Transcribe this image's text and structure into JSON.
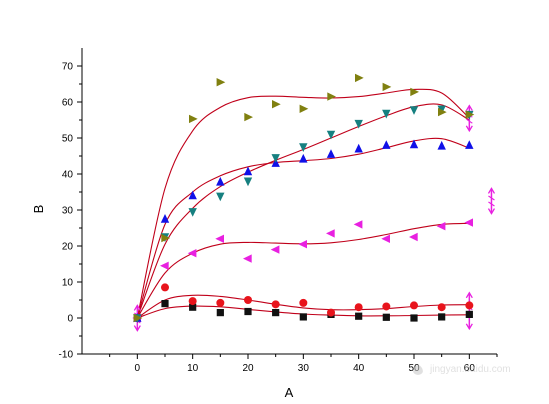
{
  "chart_data": {
    "type": "scatter",
    "xlabel": "A",
    "ylabel": "B",
    "xlim": [
      -10,
      65
    ],
    "ylim": [
      -10,
      75
    ],
    "x_ticks": [
      0,
      10,
      20,
      30,
      40,
      50,
      60
    ],
    "y_ticks": [
      -10,
      0,
      10,
      20,
      30,
      40,
      50,
      60,
      70
    ],
    "grid": false,
    "fit_color": "#c0001a",
    "series": [
      {
        "marker": "square",
        "color": "#111111",
        "x": [
          0,
          5,
          10,
          15,
          20,
          25,
          30,
          35,
          40,
          45,
          50,
          55,
          60
        ],
        "y": [
          0,
          4,
          3,
          1.5,
          1.8,
          1.5,
          0.3,
          1,
          0.5,
          0.2,
          0,
          0.3,
          1
        ],
        "fit": [
          [
            0,
            0
          ],
          [
            5,
            2.6
          ],
          [
            10,
            3.3
          ],
          [
            15,
            3.1
          ],
          [
            20,
            2.4
          ],
          [
            25,
            1.7
          ],
          [
            30,
            1.1
          ],
          [
            35,
            0.8
          ],
          [
            40,
            0.6
          ],
          [
            45,
            0.6
          ],
          [
            50,
            0.7
          ],
          [
            55,
            0.8
          ],
          [
            60,
            0.9
          ]
        ]
      },
      {
        "marker": "circle",
        "color": "#e8141c",
        "x": [
          0,
          5,
          10,
          15,
          20,
          25,
          30,
          35,
          40,
          45,
          50,
          55,
          60
        ],
        "y": [
          0,
          8.5,
          4.7,
          4.2,
          5,
          3.8,
          4.2,
          1.5,
          3,
          3.2,
          3.5,
          3,
          3.5
        ],
        "fit": [
          [
            0,
            0
          ],
          [
            5,
            5
          ],
          [
            10,
            6.3
          ],
          [
            15,
            6
          ],
          [
            20,
            5
          ],
          [
            25,
            3.8
          ],
          [
            30,
            2.8
          ],
          [
            35,
            2.3
          ],
          [
            40,
            2.3
          ],
          [
            45,
            2.6
          ],
          [
            50,
            3.2
          ],
          [
            55,
            3.6
          ],
          [
            60,
            3.7
          ]
        ]
      },
      {
        "marker": "triangle-left",
        "color": "#e820e0",
        "x": [
          0,
          5,
          10,
          15,
          20,
          25,
          30,
          35,
          40,
          45,
          50,
          55,
          60
        ],
        "y": [
          0,
          14.5,
          18,
          22,
          16.5,
          19,
          20.5,
          23.5,
          26,
          22,
          22.5,
          25.5,
          26.5
        ],
        "fit": [
          [
            0,
            0
          ],
          [
            5,
            12.5
          ],
          [
            10,
            18
          ],
          [
            15,
            20.5
          ],
          [
            20,
            21
          ],
          [
            25,
            20.8
          ],
          [
            30,
            20.6
          ],
          [
            35,
            20.9
          ],
          [
            40,
            21.8
          ],
          [
            45,
            23.2
          ],
          [
            50,
            24.8
          ],
          [
            55,
            26
          ],
          [
            60,
            26.3
          ]
        ]
      },
      {
        "marker": "triangle-up",
        "color": "#1010e8",
        "x": [
          0,
          5,
          10,
          15,
          20,
          25,
          30,
          35,
          40,
          45,
          50,
          55,
          60
        ],
        "y": [
          0,
          27.5,
          34,
          37.8,
          40.7,
          43,
          44.2,
          45.5,
          47,
          48,
          48.2,
          47.8,
          48
        ],
        "fit": [
          [
            0,
            0
          ],
          [
            5,
            26
          ],
          [
            10,
            35
          ],
          [
            15,
            39.5
          ],
          [
            20,
            42
          ],
          [
            25,
            43.2
          ],
          [
            30,
            43.7
          ],
          [
            35,
            44.3
          ],
          [
            40,
            45.5
          ],
          [
            45,
            47.3
          ],
          [
            50,
            49.2
          ],
          [
            55,
            49.8
          ],
          [
            60,
            47.2
          ]
        ]
      },
      {
        "marker": "triangle-down",
        "color": "#168080",
        "x": [
          0,
          5,
          10,
          15,
          20,
          25,
          30,
          35,
          40,
          45,
          50,
          55,
          60
        ],
        "y": [
          0,
          22.5,
          29.5,
          33.8,
          38,
          44.5,
          47.5,
          51,
          54,
          56.8,
          57.8,
          58,
          56.5
        ],
        "fit": [
          [
            0,
            0
          ],
          [
            5,
            20.5
          ],
          [
            10,
            30.5
          ],
          [
            15,
            36.5
          ],
          [
            20,
            40.5
          ],
          [
            25,
            43.8
          ],
          [
            30,
            46.8
          ],
          [
            35,
            50
          ],
          [
            40,
            53.2
          ],
          [
            45,
            56.2
          ],
          [
            50,
            58.7
          ],
          [
            55,
            59.2
          ],
          [
            60,
            55
          ]
        ]
      },
      {
        "marker": "triangle-right",
        "color": "#808010",
        "x": [
          0,
          5,
          10,
          15,
          20,
          25,
          30,
          35,
          40,
          45,
          50,
          55,
          60
        ],
        "y": [
          0,
          22.2,
          55.3,
          65.5,
          55.8,
          59.4,
          58.1,
          61.5,
          66.7,
          64.2,
          62.8,
          57.2,
          56.5
        ],
        "fit": [
          [
            0,
            0
          ],
          [
            5,
            36
          ],
          [
            10,
            52
          ],
          [
            15,
            58.5
          ],
          [
            20,
            61.2
          ],
          [
            25,
            61.6
          ],
          [
            30,
            61.3
          ],
          [
            35,
            61.1
          ],
          [
            40,
            61.5
          ],
          [
            45,
            62.5
          ],
          [
            50,
            63.5
          ],
          [
            55,
            62.5
          ],
          [
            60,
            55.5
          ]
        ]
      }
    ],
    "error_bars": [
      {
        "x": 0,
        "low": -3.5,
        "high": 3.5,
        "color": "#e820e0"
      },
      {
        "x": 60,
        "low": 52,
        "high": 59,
        "color": "#e820e0"
      },
      {
        "x": 60,
        "low": -3,
        "high": 7,
        "color": "#e820e0"
      },
      {
        "x": 64,
        "low": 29,
        "high": 36,
        "color": "#e820e0"
      }
    ]
  },
  "watermark": {
    "text": "jingyan.baidu.com"
  }
}
